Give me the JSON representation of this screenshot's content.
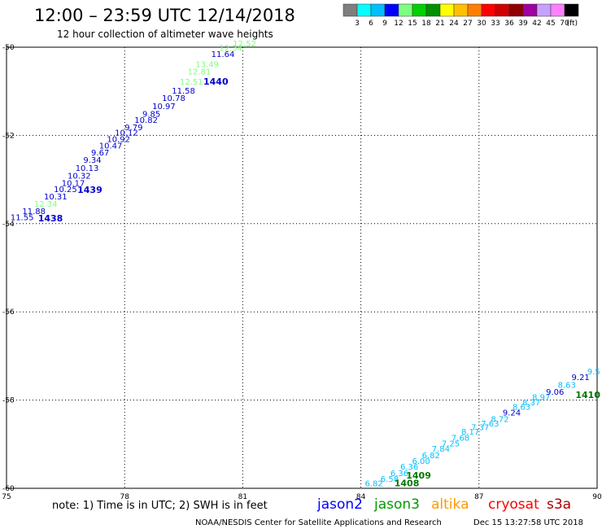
{
  "header": {
    "title": "12:00 – 23:59 UTC 12/14/2018",
    "subtitle": "12 hour collection of altimeter wave heights"
  },
  "colorbar": {
    "unit": "(ft)",
    "bins": [
      {
        "label": "3",
        "color": "#7f7f7f"
      },
      {
        "label": "6",
        "color": "#00ffff"
      },
      {
        "label": "9",
        "color": "#00bfff"
      },
      {
        "label": "12",
        "color": "#0000ff"
      },
      {
        "label": "15",
        "color": "#7fff7f"
      },
      {
        "label": "18",
        "color": "#00d000"
      },
      {
        "label": "21",
        "color": "#009000"
      },
      {
        "label": "24",
        "color": "#ffff00"
      },
      {
        "label": "27",
        "color": "#ffc000"
      },
      {
        "label": "30",
        "color": "#ff8000"
      },
      {
        "label": "33",
        "color": "#ff0000"
      },
      {
        "label": "36",
        "color": "#d00000"
      },
      {
        "label": "39",
        "color": "#900000"
      },
      {
        "label": "42",
        "color": "#a000a0"
      },
      {
        "label": "45",
        "color": "#c8a0ff"
      },
      {
        "label": "70",
        "color": "#ff80ff"
      },
      {
        "label": "",
        "color": "#000000"
      }
    ]
  },
  "map": {
    "x_ticks": [
      "75",
      "78",
      "81",
      "84",
      "87",
      "90"
    ],
    "y_ticks": [
      "-50",
      "-52",
      "-54",
      "-56",
      "-58",
      "-60"
    ],
    "x_range": [
      75,
      90
    ],
    "y_range": [
      -50,
      -60
    ]
  },
  "tracks": [
    {
      "points": [
        {
          "lon": 75.1,
          "lat": -53.92,
          "swh": "11.55",
          "color": "#0000cc"
        },
        {
          "lon": 75.4,
          "lat": -53.78,
          "swh": "11.88",
          "color": "#0000cc"
        },
        {
          "lon": 75.7,
          "lat": -53.62,
          "swh": "12.34",
          "color": "#7fff7f"
        },
        {
          "lon": 75.95,
          "lat": -53.45,
          "swh": "10.31",
          "color": "#0000cc"
        },
        {
          "lon": 76.2,
          "lat": -53.28,
          "swh": "10.25",
          "color": "#0000cc"
        },
        {
          "lon": 76.4,
          "lat": -53.15,
          "swh": "10.17",
          "color": "#0000cc"
        },
        {
          "lon": 76.55,
          "lat": -52.98,
          "swh": "10.32",
          "color": "#0000cc"
        },
        {
          "lon": 76.75,
          "lat": -52.8,
          "swh": "10.13",
          "color": "#0000cc"
        },
        {
          "lon": 76.95,
          "lat": -52.62,
          "swh": "9.34",
          "color": "#0000cc"
        },
        {
          "lon": 77.15,
          "lat": -52.45,
          "swh": "9.67",
          "color": "#0000cc"
        },
        {
          "lon": 77.35,
          "lat": -52.3,
          "swh": "10.47",
          "color": "#0000cc"
        },
        {
          "lon": 77.55,
          "lat": -52.15,
          "swh": "10.92",
          "color": "#0000cc"
        },
        {
          "lon": 77.75,
          "lat": -52.0,
          "swh": "10.12",
          "color": "#0000cc"
        },
        {
          "lon": 78.0,
          "lat": -51.88,
          "swh": "9.79",
          "color": "#0000cc"
        },
        {
          "lon": 78.25,
          "lat": -51.72,
          "swh": "10.82",
          "color": "#0000cc"
        },
        {
          "lon": 78.45,
          "lat": -51.58,
          "swh": "9.85",
          "color": "#0000cc"
        },
        {
          "lon": 78.7,
          "lat": -51.4,
          "swh": "10.97",
          "color": "#0000cc"
        },
        {
          "lon": 78.95,
          "lat": -51.22,
          "swh": "10.78",
          "color": "#0000cc"
        },
        {
          "lon": 79.2,
          "lat": -51.05,
          "swh": "11.58",
          "color": "#0000cc"
        },
        {
          "lon": 79.4,
          "lat": -50.85,
          "swh": "12.51",
          "color": "#7fff7f"
        },
        {
          "lon": 79.6,
          "lat": -50.62,
          "swh": "12.81",
          "color": "#7fff7f"
        },
        {
          "lon": 79.8,
          "lat": -50.45,
          "swh": "13.49",
          "color": "#7fff7f"
        },
        {
          "lon": 80.2,
          "lat": -50.22,
          "swh": "11.64",
          "color": "#0000cc"
        },
        {
          "lon": 80.4,
          "lat": -50.08,
          "swh": "12.34",
          "color": "#7fff7f"
        },
        {
          "lon": 80.75,
          "lat": -49.98,
          "swh": "12.52",
          "color": "#7fff7f"
        }
      ],
      "passes": [
        {
          "lon": 75.8,
          "lat": -53.95,
          "label": "1438",
          "color": "#0000cc"
        },
        {
          "lon": 76.8,
          "lat": -53.3,
          "label": "1439",
          "color": "#0000cc"
        },
        {
          "lon": 80.0,
          "lat": -50.85,
          "label": "1440",
          "color": "#0000cc"
        }
      ]
    },
    {
      "points": [
        {
          "lon": 84.1,
          "lat": -59.95,
          "swh": "6.82",
          "color": "#00bfff"
        },
        {
          "lon": 84.5,
          "lat": -59.85,
          "swh": "6.58",
          "color": "#00bfff"
        },
        {
          "lon": 84.75,
          "lat": -59.72,
          "swh": "6.36",
          "color": "#00bfff"
        },
        {
          "lon": 85.0,
          "lat": -59.58,
          "swh": "6.36",
          "color": "#00bfff"
        },
        {
          "lon": 85.3,
          "lat": -59.45,
          "swh": "6.00",
          "color": "#00bfff"
        },
        {
          "lon": 85.55,
          "lat": -59.32,
          "swh": "6.82",
          "color": "#00bfff"
        },
        {
          "lon": 85.8,
          "lat": -59.17,
          "swh": "7.84",
          "color": "#00bfff"
        },
        {
          "lon": 86.05,
          "lat": -59.05,
          "swh": "7.25",
          "color": "#00bfff"
        },
        {
          "lon": 86.3,
          "lat": -58.92,
          "swh": "7.68",
          "color": "#00bfff"
        },
        {
          "lon": 86.55,
          "lat": -58.78,
          "swh": "8.17",
          "color": "#00bfff"
        },
        {
          "lon": 86.8,
          "lat": -58.68,
          "swh": "7.37",
          "color": "#00bfff"
        },
        {
          "lon": 87.05,
          "lat": -58.6,
          "swh": "7.63",
          "color": "#00bfff"
        },
        {
          "lon": 87.3,
          "lat": -58.5,
          "swh": "8.72",
          "color": "#00bfff"
        },
        {
          "lon": 87.6,
          "lat": -58.35,
          "swh": "9.24",
          "color": "#0000cc"
        },
        {
          "lon": 87.85,
          "lat": -58.22,
          "swh": "8.63",
          "color": "#00bfff"
        },
        {
          "lon": 88.1,
          "lat": -58.12,
          "swh": "8.37",
          "color": "#00bfff"
        },
        {
          "lon": 88.35,
          "lat": -58.0,
          "swh": "8.97",
          "color": "#00bfff"
        },
        {
          "lon": 88.7,
          "lat": -57.88,
          "swh": "9.06",
          "color": "#0000cc"
        },
        {
          "lon": 89.0,
          "lat": -57.72,
          "swh": "8.63",
          "color": "#00bfff"
        },
        {
          "lon": 89.35,
          "lat": -57.55,
          "swh": "9.21",
          "color": "#0000cc"
        },
        {
          "lon": 89.75,
          "lat": -57.42,
          "swh": "9.5",
          "color": "#00bfff"
        }
      ],
      "passes": [
        {
          "lon": 84.85,
          "lat": -59.95,
          "label": "1408",
          "color": "#007700"
        },
        {
          "lon": 85.15,
          "lat": -59.78,
          "label": "1409",
          "color": "#007700"
        },
        {
          "lon": 89.45,
          "lat": -57.95,
          "label": "1410",
          "color": "#007700"
        }
      ]
    }
  ],
  "footer": {
    "note": "note:  1) Time is in UTC;  2) SWH is in feet",
    "legend": [
      {
        "label": "jason2",
        "color": "#0000ff"
      },
      {
        "label": "jason3",
        "color": "#009900"
      },
      {
        "label": "altika",
        "color": "#ff9900"
      },
      {
        "label": "cryosat",
        "color": "#ff0000"
      },
      {
        "label": "s3a",
        "color": "#aa0000"
      }
    ],
    "credit": "NOAA/NESDIS Center for Satellite Applications and Research",
    "timestamp": "Dec 15 13:27:58 UTC 2018"
  }
}
